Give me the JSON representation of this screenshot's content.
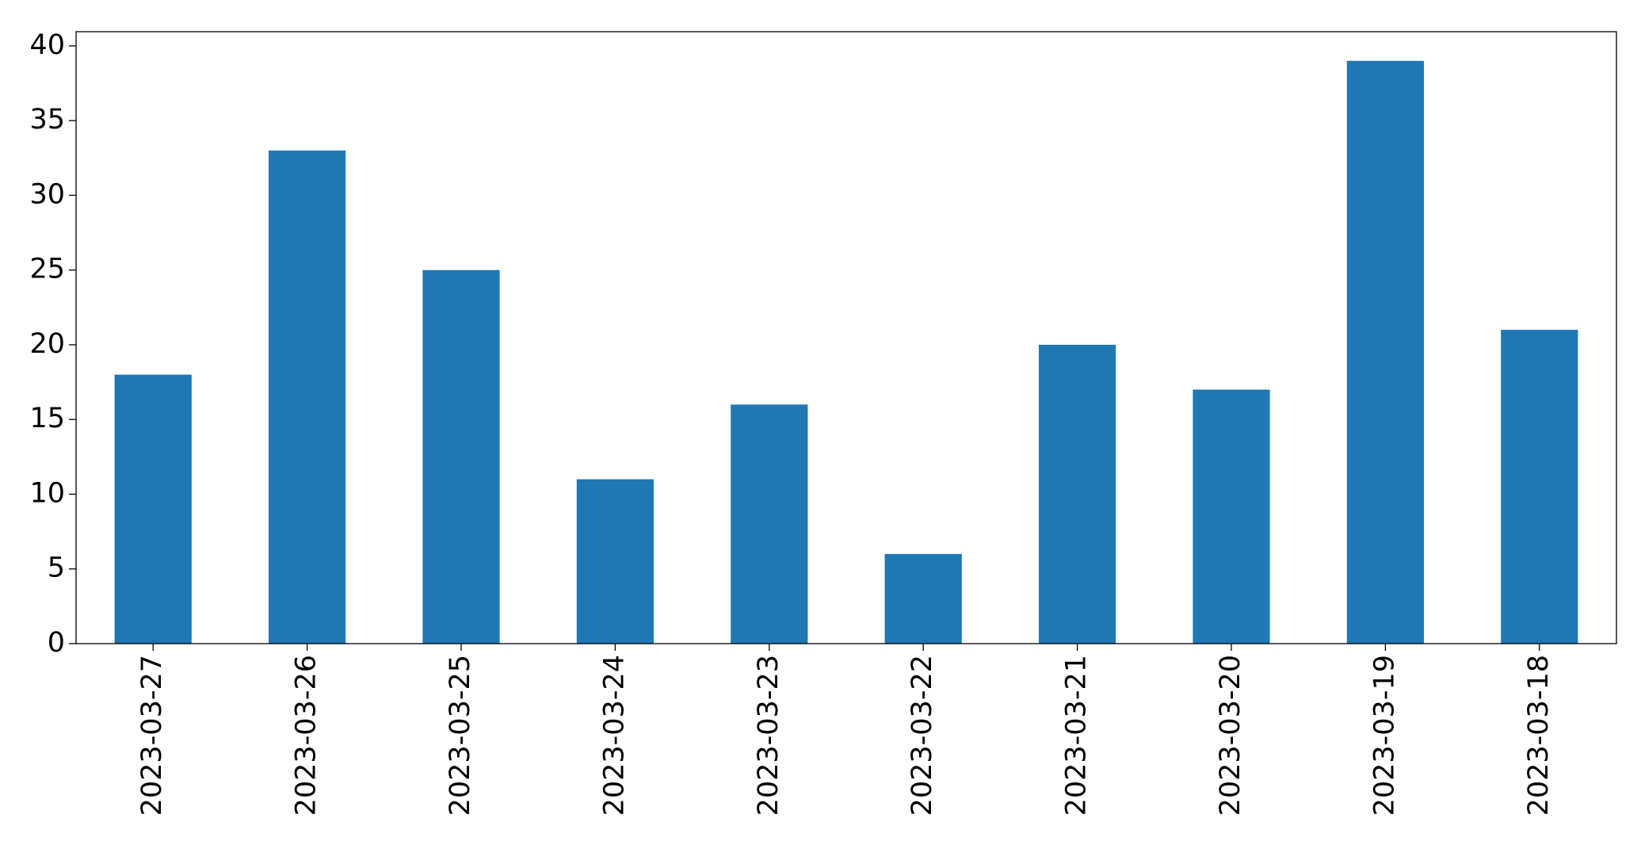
{
  "chart_data": {
    "type": "bar",
    "categories": [
      "2023-03-27",
      "2023-03-26",
      "2023-03-25",
      "2023-03-24",
      "2023-03-23",
      "2023-03-22",
      "2023-03-21",
      "2023-03-20",
      "2023-03-19",
      "2023-03-18"
    ],
    "values": [
      18,
      33,
      25,
      11,
      16,
      6,
      20,
      17,
      39,
      21
    ],
    "color": "#1f77b4",
    "ylim": [
      0,
      40.95
    ],
    "yticks": [
      0,
      5,
      10,
      15,
      20,
      25,
      30,
      35,
      40
    ],
    "grid": false
  }
}
